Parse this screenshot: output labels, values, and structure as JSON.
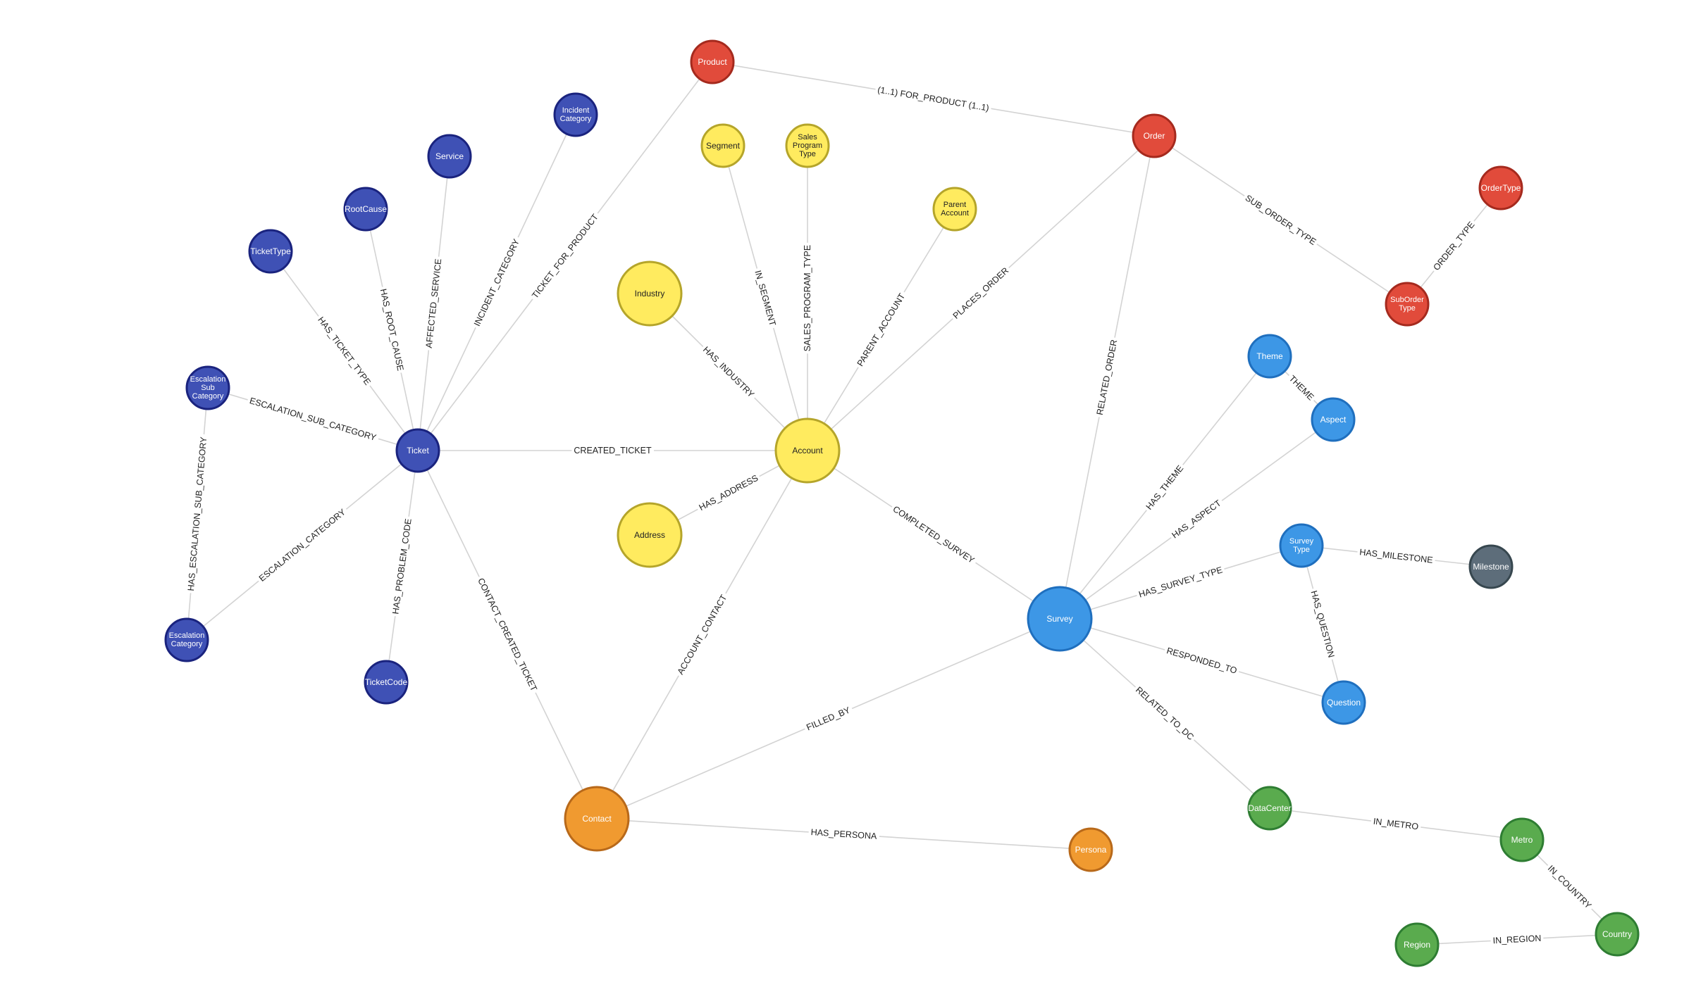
{
  "graph": {
    "colors": {
      "indigo": {
        "fill": "#3f51b5",
        "stroke": "#1a237e",
        "text": "#ffffff"
      },
      "yellow": {
        "fill": "#ffeb5f",
        "stroke": "#b5a52a",
        "text": "#222222"
      },
      "red": {
        "fill": "#e14b3b",
        "stroke": "#a52a1e",
        "text": "#ffffff"
      },
      "blue": {
        "fill": "#3d97e6",
        "stroke": "#1f6fbe",
        "text": "#ffffff"
      },
      "orange": {
        "fill": "#f09a30",
        "stroke": "#b8691a",
        "text": "#ffffff"
      },
      "green": {
        "fill": "#5aab4e",
        "stroke": "#2e7d32",
        "text": "#ffffff"
      },
      "slate": {
        "fill": "#5d6d7a",
        "stroke": "#37474f",
        "text": "#ffffff"
      }
    },
    "nodes": [
      {
        "id": "ticket",
        "label": "Ticket",
        "color": "indigo"
      },
      {
        "id": "incident_category",
        "label": "Incident\nCategory",
        "color": "indigo"
      },
      {
        "id": "service",
        "label": "Service",
        "color": "indigo"
      },
      {
        "id": "rootcause",
        "label": "RootCause",
        "color": "indigo"
      },
      {
        "id": "tickettype",
        "label": "TicketType",
        "color": "indigo"
      },
      {
        "id": "escalation_sub_category",
        "label": "Escalation\nSub\nCategory",
        "color": "indigo"
      },
      {
        "id": "escalation_category",
        "label": "Escalation\nCategory",
        "color": "indigo"
      },
      {
        "id": "ticketcode",
        "label": "TicketCode",
        "color": "indigo"
      },
      {
        "id": "product",
        "label": "Product",
        "color": "red"
      },
      {
        "id": "order",
        "label": "Order",
        "color": "red"
      },
      {
        "id": "ordertype",
        "label": "OrderType",
        "color": "red"
      },
      {
        "id": "suborder_type",
        "label": "SubOrder\nType",
        "color": "red"
      },
      {
        "id": "account",
        "label": "Account",
        "color": "yellow"
      },
      {
        "id": "segment",
        "label": "Segment",
        "color": "yellow"
      },
      {
        "id": "sales_program_type",
        "label": "Sales\nProgram\nType",
        "color": "yellow"
      },
      {
        "id": "parent_account",
        "label": "Parent\nAccount",
        "color": "yellow"
      },
      {
        "id": "industry",
        "label": "Industry",
        "color": "yellow"
      },
      {
        "id": "address",
        "label": "Address",
        "color": "yellow"
      },
      {
        "id": "survey",
        "label": "Survey",
        "color": "blue"
      },
      {
        "id": "theme",
        "label": "Theme",
        "color": "blue"
      },
      {
        "id": "aspect",
        "label": "Aspect",
        "color": "blue"
      },
      {
        "id": "survey_type",
        "label": "Survey\nType",
        "color": "blue"
      },
      {
        "id": "question",
        "label": "Question",
        "color": "blue"
      },
      {
        "id": "milestone",
        "label": "Milestone",
        "color": "slate"
      },
      {
        "id": "contact",
        "label": "Contact",
        "color": "orange"
      },
      {
        "id": "persona",
        "label": "Persona",
        "color": "orange"
      },
      {
        "id": "datacenter",
        "label": "DataCenter",
        "color": "green"
      },
      {
        "id": "metro",
        "label": "Metro",
        "color": "green"
      },
      {
        "id": "country",
        "label": "Country",
        "color": "green"
      },
      {
        "id": "region",
        "label": "Region",
        "color": "green"
      }
    ],
    "edges": [
      {
        "from": "ticket",
        "to": "incident_category",
        "label": "INCIDENT_CATEGORY"
      },
      {
        "from": "ticket",
        "to": "service",
        "label": "AFFECTED_SERVICE"
      },
      {
        "from": "ticket",
        "to": "rootcause",
        "label": "HAS_ROOT_CAUSE"
      },
      {
        "from": "ticket",
        "to": "tickettype",
        "label": "HAS_TICKET_TYPE"
      },
      {
        "from": "ticket",
        "to": "escalation_sub_category",
        "label": "ESCALATION_SUB_CATEGORY"
      },
      {
        "from": "ticket",
        "to": "escalation_category",
        "label": "ESCALATION_CATEGORY"
      },
      {
        "from": "escalation_category",
        "to": "escalation_sub_category",
        "label": "HAS_ESCALATION_SUB_CATEGORY"
      },
      {
        "from": "ticket",
        "to": "ticketcode",
        "label": "HAS_PROBLEM_CODE"
      },
      {
        "from": "ticket",
        "to": "product",
        "label": "TICKET_FOR_PRODUCT"
      },
      {
        "from": "ticket",
        "to": "account",
        "label": "CREATED_TICKET"
      },
      {
        "from": "ticket",
        "to": "contact",
        "label": "CONTACT_CREATED_TICKET"
      },
      {
        "from": "product",
        "to": "order",
        "label": "(1..1) FOR_PRODUCT (1..1)"
      },
      {
        "from": "order",
        "to": "suborder_type",
        "label": "SUB_ORDER_TYPE"
      },
      {
        "from": "suborder_type",
        "to": "ordertype",
        "label": "ORDER_TYPE"
      },
      {
        "from": "account",
        "to": "order",
        "label": "PLACES_ORDER"
      },
      {
        "from": "survey",
        "to": "order",
        "label": "RELATED_ORDER"
      },
      {
        "from": "account",
        "to": "segment",
        "label": "IN_SEGMENT"
      },
      {
        "from": "account",
        "to": "sales_program_type",
        "label": "SALES_PROGRAM_TYPE"
      },
      {
        "from": "account",
        "to": "parent_account",
        "label": "PARENT_ACCOUNT"
      },
      {
        "from": "account",
        "to": "industry",
        "label": "HAS_INDUSTRY"
      },
      {
        "from": "account",
        "to": "address",
        "label": "HAS_ADDRESS"
      },
      {
        "from": "account",
        "to": "survey",
        "label": "COMPLETED_SURVEY"
      },
      {
        "from": "account",
        "to": "contact",
        "label": "ACCOUNT_CONTACT"
      },
      {
        "from": "survey",
        "to": "theme",
        "label": "HAS_THEME"
      },
      {
        "from": "theme",
        "to": "aspect",
        "label": "THEME"
      },
      {
        "from": "survey",
        "to": "aspect",
        "label": "HAS_ASPECT"
      },
      {
        "from": "survey",
        "to": "survey_type",
        "label": "HAS_SURVEY_TYPE"
      },
      {
        "from": "survey_type",
        "to": "milestone",
        "label": "HAS_MILESTONE"
      },
      {
        "from": "survey_type",
        "to": "question",
        "label": "HAS_QUESTION"
      },
      {
        "from": "survey",
        "to": "question",
        "label": "RESPONDED_TO"
      },
      {
        "from": "survey",
        "to": "datacenter",
        "label": "RELATED_TO_DC"
      },
      {
        "from": "contact",
        "to": "survey",
        "label": "FILLED_BY"
      },
      {
        "from": "contact",
        "to": "persona",
        "label": "HAS_PERSONA"
      },
      {
        "from": "datacenter",
        "to": "metro",
        "label": "IN_METRO"
      },
      {
        "from": "metro",
        "to": "country",
        "label": "IN_COUNTRY"
      },
      {
        "from": "region",
        "to": "country",
        "label": "IN_REGION"
      }
    ]
  }
}
